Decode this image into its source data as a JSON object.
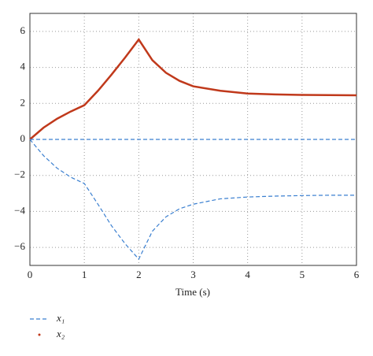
{
  "chart_data": {
    "type": "line",
    "x_label": "Time (s)",
    "x": [
      0,
      0.25,
      0.5,
      0.75,
      1,
      1.25,
      1.5,
      1.75,
      2,
      2.25,
      2.5,
      2.75,
      3,
      3.5,
      4,
      4.5,
      5,
      5.5,
      6
    ],
    "series": [
      {
        "name": "x₁",
        "color": "#3a7fd0",
        "dash": true,
        "values": [
          0,
          -0.9,
          -1.6,
          -2.1,
          -2.45,
          -3.6,
          -4.8,
          -5.8,
          -6.65,
          -5.1,
          -4.3,
          -3.85,
          -3.6,
          -3.3,
          -3.2,
          -3.15,
          -3.12,
          -3.1,
          -3.1
        ]
      },
      {
        "name": "x₂",
        "color": "#c0391b",
        "dash": false,
        "values": [
          0,
          0.65,
          1.15,
          1.55,
          1.9,
          2.7,
          3.6,
          4.55,
          5.55,
          4.4,
          3.7,
          3.25,
          2.95,
          2.7,
          2.55,
          2.5,
          2.47,
          2.46,
          2.45
        ]
      },
      {
        "color": "#3a7fd0",
        "dash": true,
        "values": [
          0,
          0,
          0,
          0,
          0,
          0,
          0,
          0,
          0,
          0,
          0,
          0,
          0,
          0,
          0,
          0,
          0,
          0,
          0
        ]
      }
    ],
    "xlim": [
      0,
      6
    ],
    "ylim": [
      -7,
      7
    ],
    "xticks": [
      0,
      1,
      2,
      3,
      4,
      5,
      6
    ],
    "yticks": [
      {
        "value": -6,
        "label": "−6"
      },
      {
        "value": -4,
        "label": "−4"
      },
      {
        "value": -2,
        "label": "−2"
      },
      0,
      2,
      4,
      6
    ],
    "grid": true
  }
}
